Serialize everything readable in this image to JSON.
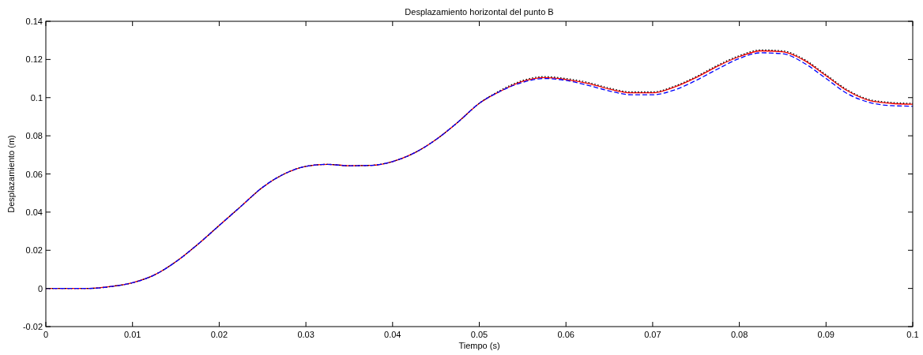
{
  "chart_data": {
    "type": "line",
    "title": "Desplazamiento horizontal del punto B",
    "xlabel": "Tiempo (s)",
    "ylabel": "Desplazamiento (m)",
    "x": [
      0,
      0.0025,
      0.005,
      0.0075,
      0.01,
      0.0125,
      0.015,
      0.0175,
      0.02,
      0.0225,
      0.025,
      0.0275,
      0.03,
      0.0325,
      0.035,
      0.0375,
      0.04,
      0.0425,
      0.045,
      0.0475,
      0.05,
      0.0525,
      0.055,
      0.0575,
      0.06,
      0.0625,
      0.065,
      0.0675,
      0.07,
      0.0725,
      0.075,
      0.0775,
      0.08,
      0.0825,
      0.085,
      0.0875,
      0.09,
      0.0925,
      0.095,
      0.0975,
      0.1
    ],
    "series": [
      {
        "color": "#ff0000",
        "line_style": "solid",
        "values": [
          0,
          0,
          0,
          0.001,
          0.003,
          0.007,
          0.014,
          0.023,
          0.033,
          0.043,
          0.053,
          0.06,
          0.064,
          0.065,
          0.0643,
          0.0645,
          0.0665,
          0.071,
          0.078,
          0.087,
          0.097,
          0.1035,
          0.1085,
          0.1105,
          0.1095,
          0.1075,
          0.1045,
          0.1025,
          0.1025,
          0.1055,
          0.1105,
          0.1165,
          0.1215,
          0.1245,
          0.124,
          0.1195,
          0.1115,
          0.1035,
          0.0985,
          0.097,
          0.0965
        ]
      },
      {
        "color": "#000000",
        "line_style": "dotted",
        "values": [
          0,
          0,
          0,
          0.001,
          0.003,
          0.007,
          0.014,
          0.023,
          0.033,
          0.043,
          0.053,
          0.06,
          0.064,
          0.065,
          0.0643,
          0.0645,
          0.0665,
          0.071,
          0.078,
          0.087,
          0.097,
          0.104,
          0.109,
          0.111,
          0.11,
          0.108,
          0.105,
          0.103,
          0.103,
          0.106,
          0.111,
          0.117,
          0.122,
          0.125,
          0.1245,
          0.12,
          0.112,
          0.104,
          0.099,
          0.0975,
          0.097
        ]
      },
      {
        "color": "#0000ff",
        "line_style": "dashed",
        "values": [
          0,
          0,
          0,
          0.001,
          0.003,
          0.007,
          0.014,
          0.023,
          0.033,
          0.043,
          0.053,
          0.06,
          0.064,
          0.065,
          0.0643,
          0.0645,
          0.0665,
          0.071,
          0.078,
          0.087,
          0.097,
          0.1035,
          0.108,
          0.11,
          0.109,
          0.1065,
          0.1035,
          0.1015,
          0.1015,
          0.104,
          0.109,
          0.115,
          0.1205,
          0.1235,
          0.123,
          0.118,
          0.11,
          0.102,
          0.0975,
          0.0958,
          0.0955
        ]
      }
    ],
    "xlim": [
      0,
      0.1
    ],
    "xticks": [
      0,
      0.01,
      0.02,
      0.03,
      0.04,
      0.05,
      0.06,
      0.07,
      0.08,
      0.09,
      0.1
    ],
    "ylim": [
      -0.02,
      0.14
    ],
    "yticks": [
      -0.02,
      0,
      0.02,
      0.04,
      0.06,
      0.08,
      0.1,
      0.12,
      0.14
    ],
    "grid": false
  }
}
